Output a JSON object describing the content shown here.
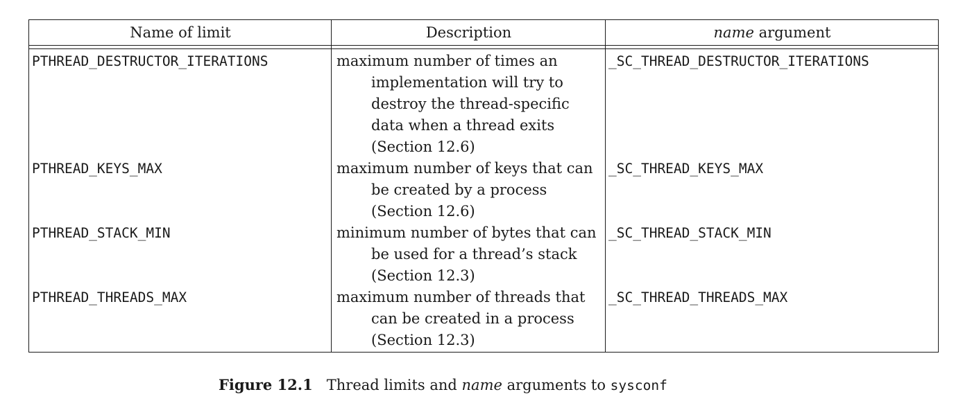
{
  "table": {
    "headers": {
      "name_of_limit": "Name of limit",
      "description": "Description",
      "name_argument_italic": "name",
      "name_argument_rest": "argument"
    },
    "rows": [
      {
        "name": "PTHREAD_DESTRUCTOR_ITERATIONS",
        "description": [
          "maximum number of times an",
          "implementation will try to",
          "destroy the thread-specific",
          "data when a thread exits",
          "(Section 12.6)"
        ],
        "argument": "_SC_THREAD_DESTRUCTOR_ITERATIONS"
      },
      {
        "name": "PTHREAD_KEYS_MAX",
        "description": [
          "maximum number of keys that can",
          "be created by a process",
          "(Section 12.6)"
        ],
        "argument": "_SC_THREAD_KEYS_MAX"
      },
      {
        "name": "PTHREAD_STACK_MIN",
        "description": [
          "minimum number of bytes that can",
          "be used for a thread’s stack",
          "(Section 12.3)"
        ],
        "argument": "_SC_THREAD_STACK_MIN"
      },
      {
        "name": "PTHREAD_THREADS_MAX",
        "description": [
          "maximum number of threads that",
          "can be created in a process",
          "(Section 12.3)"
        ],
        "argument": "_SC_THREAD_THREADS_MAX"
      }
    ]
  },
  "caption": {
    "label": "Figure 12.1",
    "text_before": "Thread limits and",
    "italic_word": "name",
    "text_after": "arguments to",
    "code": "sysconf"
  }
}
